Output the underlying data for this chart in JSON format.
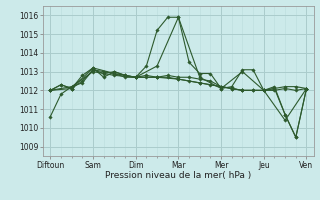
{
  "title": "",
  "xlabel": "Pression niveau de la mer( hPa )",
  "ylabel": "",
  "background_color": "#cceaea",
  "line_color": "#2d5a2d",
  "grid_major_color": "#aacccc",
  "grid_minor_color": "#bbdddd",
  "xtick_labels": [
    "Diftoun",
    "Sam",
    "Dim",
    "Mar",
    "Mer",
    "Jeu",
    "Ven"
  ],
  "ytick_values": [
    1009,
    1010,
    1011,
    1012,
    1013,
    1014,
    1015,
    1016
  ],
  "ylim": [
    1008.5,
    1016.5
  ],
  "xlim": [
    -4,
    148
  ],
  "xtick_positions": [
    0,
    24,
    48,
    72,
    96,
    120,
    144
  ],
  "lines": [
    {
      "x": [
        0,
        6,
        12,
        18,
        24,
        30,
        36,
        42,
        48,
        54,
        60,
        66,
        72,
        78,
        84,
        90,
        96,
        102,
        108,
        114,
        120,
        126,
        132,
        138,
        144
      ],
      "y": [
        1010.6,
        1011.8,
        1012.2,
        1012.4,
        1013.1,
        1012.9,
        1013.0,
        1012.8,
        1012.7,
        1013.3,
        1015.2,
        1015.9,
        1015.9,
        1013.5,
        1012.9,
        1012.9,
        1012.1,
        1012.2,
        1013.1,
        1013.1,
        1012.0,
        1012.2,
        1010.7,
        1009.5,
        1012.1
      ]
    },
    {
      "x": [
        0,
        6,
        12,
        18,
        24,
        30,
        36,
        42,
        48,
        54,
        60,
        66,
        72,
        78,
        84,
        90,
        96,
        102,
        108,
        114,
        120,
        126,
        132,
        138,
        144
      ],
      "y": [
        1012.0,
        1012.3,
        1012.1,
        1012.8,
        1013.2,
        1012.7,
        1013.0,
        1012.8,
        1012.7,
        1012.7,
        1012.7,
        1012.7,
        1012.6,
        1012.5,
        1012.4,
        1012.3,
        1012.2,
        1012.1,
        1012.0,
        1012.0,
        1012.0,
        1012.1,
        1012.2,
        1012.2,
        1012.1
      ]
    },
    {
      "x": [
        0,
        6,
        12,
        18,
        24,
        30,
        36,
        42,
        48,
        54,
        60,
        66,
        72,
        78,
        84,
        90,
        96,
        102,
        108,
        114,
        120,
        126,
        132,
        138,
        144
      ],
      "y": [
        1012.0,
        1012.3,
        1012.1,
        1012.5,
        1013.1,
        1013.0,
        1012.9,
        1012.7,
        1012.7,
        1012.8,
        1012.7,
        1012.8,
        1012.7,
        1012.7,
        1012.6,
        1012.5,
        1012.2,
        1012.1,
        1012.0,
        1012.0,
        1012.0,
        1012.0,
        1012.1,
        1012.0,
        1012.1
      ]
    },
    {
      "x": [
        0,
        12,
        24,
        36,
        48,
        60,
        72,
        84,
        96,
        108,
        120,
        132,
        144
      ],
      "y": [
        1012.0,
        1012.2,
        1013.0,
        1012.8,
        1012.7,
        1013.3,
        1015.9,
        1012.7,
        1012.1,
        1013.0,
        1012.0,
        1010.4,
        1012.1
      ]
    },
    {
      "x": [
        0,
        12,
        24,
        36,
        48,
        60,
        72,
        84,
        96,
        108,
        120,
        126,
        132,
        138,
        144
      ],
      "y": [
        1012.0,
        1012.1,
        1013.2,
        1012.9,
        1012.7,
        1012.7,
        1012.6,
        1012.4,
        1012.2,
        1012.0,
        1012.0,
        1012.1,
        1010.7,
        1009.5,
        1012.1
      ]
    }
  ]
}
